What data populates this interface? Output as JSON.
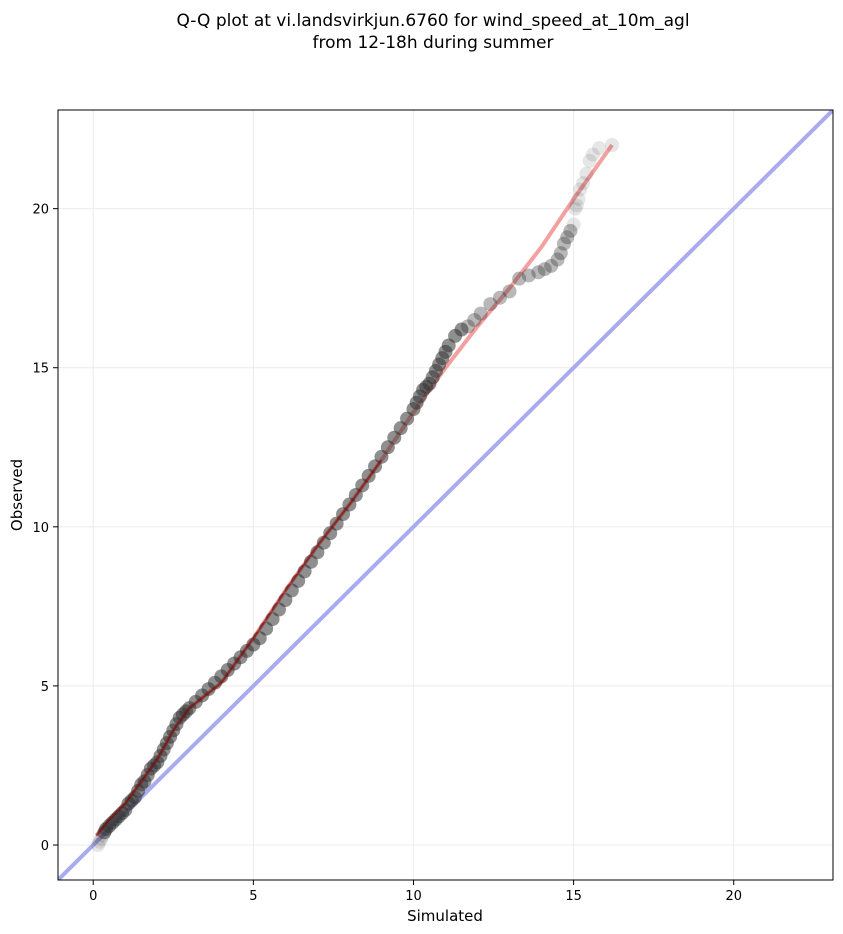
{
  "chart_data": {
    "type": "scatter",
    "title": [
      "Q-Q plot at vi.landsvirkjun.6760 for wind_speed_at_10m_agl",
      "from 12-18h during summer"
    ],
    "xlabel": "Simulated",
    "ylabel": "Observed",
    "xlim": [
      -1.1,
      23.1
    ],
    "ylim": [
      -1.1,
      23.1
    ],
    "xticks": [
      0,
      5,
      10,
      15,
      20
    ],
    "yticks": [
      0,
      5,
      10,
      15,
      20
    ],
    "grid": true,
    "colors": {
      "points": "#333333",
      "fit_line": "#f4a0a0",
      "fit_line_dark": "#8b0000",
      "identity_line": "#aaaaf0",
      "grid": "#ebebeb"
    },
    "identity_line": {
      "x": [
        -1.1,
        23.1
      ],
      "y": [
        -1.1,
        23.1
      ]
    },
    "fit_line": {
      "x": [
        0.1,
        0.5,
        1.0,
        1.5,
        2.0,
        2.5,
        3.0,
        3.5,
        4.0,
        5.0,
        6.0,
        7.0,
        8.0,
        9.0,
        10.0,
        11.0,
        12.0,
        13.0,
        14.0,
        15.0,
        16.2
      ],
      "y": [
        0.3,
        0.8,
        1.3,
        2.0,
        2.7,
        3.6,
        4.3,
        4.7,
        5.1,
        6.5,
        8.0,
        9.4,
        10.7,
        12.1,
        13.6,
        15.0,
        16.3,
        17.5,
        18.8,
        20.3,
        22.0
      ]
    },
    "points": {
      "x": [
        0.15,
        0.2,
        0.25,
        0.3,
        0.35,
        0.4,
        0.5,
        0.6,
        0.7,
        0.8,
        0.9,
        1.0,
        1.1,
        1.2,
        1.3,
        1.4,
        1.5,
        1.6,
        1.7,
        1.8,
        1.9,
        2.0,
        2.1,
        2.2,
        2.3,
        2.4,
        2.5,
        2.6,
        2.7,
        2.8,
        2.9,
        3.0,
        3.2,
        3.4,
        3.6,
        3.8,
        4.0,
        4.2,
        4.4,
        4.6,
        4.8,
        5.0,
        5.2,
        5.4,
        5.6,
        5.8,
        6.0,
        6.2,
        6.4,
        6.6,
        6.8,
        7.0,
        7.2,
        7.4,
        7.6,
        7.8,
        8.0,
        8.2,
        8.4,
        8.6,
        8.8,
        9.0,
        9.2,
        9.4,
        9.6,
        9.8,
        10.0,
        10.1,
        10.2,
        10.3,
        10.4,
        10.5,
        10.6,
        10.7,
        10.8,
        10.9,
        11.0,
        11.1,
        11.3,
        11.5,
        11.7,
        11.9,
        12.1,
        12.4,
        12.7,
        13.0,
        13.3,
        13.6,
        13.9,
        14.1,
        14.3,
        14.5,
        14.6,
        14.7,
        14.8,
        14.9,
        15.0,
        15.05,
        15.1,
        15.15,
        15.2,
        15.3,
        15.4,
        15.5,
        15.6,
        15.8,
        16.2
      ],
      "y": [
        0.0,
        0.1,
        0.2,
        0.3,
        0.4,
        0.5,
        0.6,
        0.7,
        0.8,
        0.9,
        1.0,
        1.1,
        1.3,
        1.4,
        1.5,
        1.7,
        1.9,
        2.0,
        2.2,
        2.4,
        2.5,
        2.6,
        2.8,
        3.0,
        3.2,
        3.4,
        3.6,
        3.8,
        4.0,
        4.1,
        4.2,
        4.3,
        4.5,
        4.7,
        4.9,
        5.1,
        5.3,
        5.5,
        5.7,
        5.9,
        6.1,
        6.3,
        6.5,
        6.8,
        7.1,
        7.4,
        7.7,
        8.0,
        8.3,
        8.6,
        8.9,
        9.2,
        9.5,
        9.8,
        10.1,
        10.4,
        10.7,
        11.0,
        11.3,
        11.6,
        11.9,
        12.2,
        12.5,
        12.8,
        13.1,
        13.4,
        13.7,
        13.9,
        14.1,
        14.3,
        14.4,
        14.5,
        14.7,
        14.9,
        15.1,
        15.3,
        15.5,
        15.7,
        16.0,
        16.2,
        16.3,
        16.5,
        16.7,
        17.0,
        17.2,
        17.4,
        17.8,
        17.9,
        18.0,
        18.1,
        18.2,
        18.4,
        18.6,
        18.9,
        19.1,
        19.3,
        19.5,
        20.0,
        20.1,
        20.3,
        20.6,
        20.8,
        21.1,
        21.5,
        21.7,
        21.9,
        22.0
      ]
    }
  }
}
